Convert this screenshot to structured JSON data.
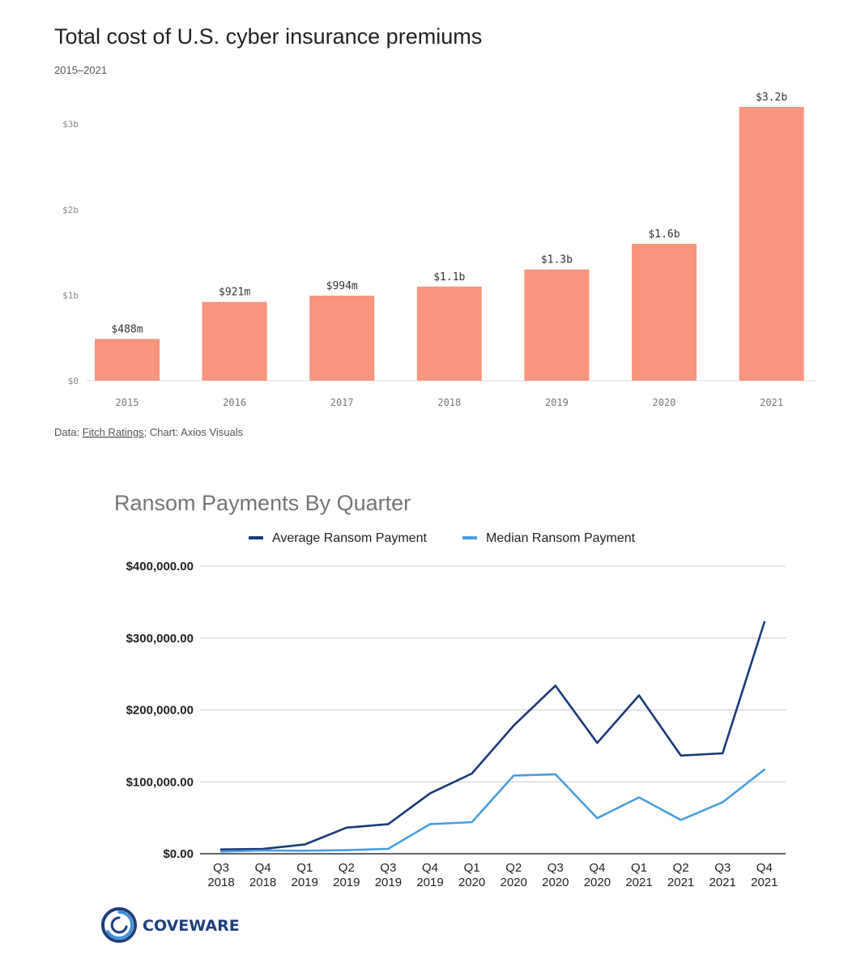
{
  "chart_data": [
    {
      "type": "bar",
      "title": "Total cost of U.S. cyber insurance premiums",
      "subtitle": "2015–2021",
      "categories": [
        "2015",
        "2016",
        "2017",
        "2018",
        "2019",
        "2020",
        "2021"
      ],
      "values": [
        0.488,
        0.921,
        0.994,
        1.1,
        1.3,
        1.6,
        3.2
      ],
      "data_labels": [
        "$488m",
        "$921m",
        "$994m",
        "$1.1b",
        "$1.3b",
        "$1.6b",
        "$3.2b"
      ],
      "y_ticks": [
        {
          "value": 0,
          "label": "$0"
        },
        {
          "value": 1,
          "label": "$1b"
        },
        {
          "value": 2,
          "label": "$2b"
        },
        {
          "value": 3,
          "label": "$3b"
        }
      ],
      "ylim": [
        0,
        3.2
      ],
      "unit": "billion USD",
      "bar_color": "#f7957e",
      "grid": false,
      "source": {
        "prefix": "Data: ",
        "link": "Fitch Ratings",
        "suffix": "; Chart: Axios Visuals"
      }
    },
    {
      "type": "line",
      "title": "Ransom Payments By Quarter",
      "categories": [
        "Q3 2018",
        "Q4 2018",
        "Q1 2019",
        "Q2 2019",
        "Q3 2019",
        "Q4 2019",
        "Q1 2020",
        "Q2 2020",
        "Q3 2020",
        "Q4 2020",
        "Q1 2021",
        "Q2 2021",
        "Q3 2021",
        "Q4 2021"
      ],
      "category_lines": [
        [
          "Q3",
          "2018"
        ],
        [
          "Q4",
          "2018"
        ],
        [
          "Q1",
          "2019"
        ],
        [
          "Q2",
          "2019"
        ],
        [
          "Q3",
          "2019"
        ],
        [
          "Q4",
          "2019"
        ],
        [
          "Q1",
          "2020"
        ],
        [
          "Q2",
          "2020"
        ],
        [
          "Q3",
          "2020"
        ],
        [
          "Q4",
          "2020"
        ],
        [
          "Q1",
          "2021"
        ],
        [
          "Q2",
          "2021"
        ],
        [
          "Q3",
          "2021"
        ],
        [
          "Q4",
          "2021"
        ]
      ],
      "series": [
        {
          "name": "Average Ransom Payment",
          "color": "#1a3a7a",
          "values": [
            6000,
            6700,
            12800,
            36300,
            41200,
            84100,
            111600,
            178300,
            233800,
            154100,
            220300,
            136600,
            139700,
            322200
          ]
        },
        {
          "name": "Median Ransom Payment",
          "color": "#4a9fe0",
          "values": [
            3000,
            4500,
            4200,
            5000,
            6900,
            41200,
            44000,
            108700,
            110500,
            49500,
            78400,
            47000,
            71700,
            117000
          ]
        }
      ],
      "y_ticks": [
        {
          "value": 0,
          "label": "$0.00"
        },
        {
          "value": 100000,
          "label": "$100,000.00"
        },
        {
          "value": 200000,
          "label": "$200,000.00"
        },
        {
          "value": 300000,
          "label": "$300,000.00"
        },
        {
          "value": 400000,
          "label": "$400,000.00"
        }
      ],
      "ylim": [
        0,
        400000
      ],
      "grid": true,
      "legend_position": "top-center"
    }
  ],
  "logo": {
    "text": "COVEWARE",
    "color": "#1f3f7a",
    "accent": "#3b8fd6"
  }
}
